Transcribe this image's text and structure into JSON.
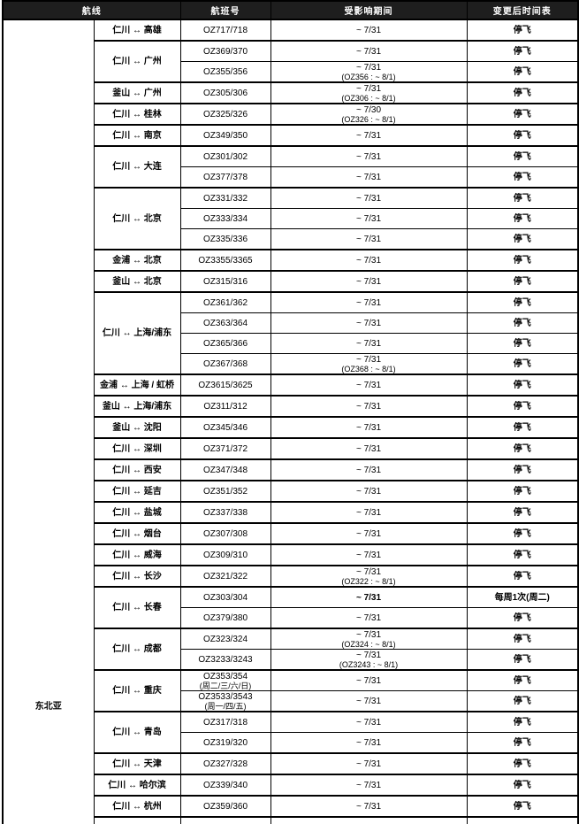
{
  "header": {
    "route": "航线",
    "flight_no": "航班号",
    "period": "受影响期间",
    "schedule": "变更后时间表"
  },
  "region": {
    "label": "东北亚"
  },
  "colors": {
    "header_bg": "#1e1e1e",
    "header_text": "#ffffff",
    "group_cell_bg": "#e9e9e9",
    "highlight_bg": "#dcdcdc",
    "highlight_text": "#2929cc",
    "border": "#000000"
  },
  "groups": [
    {
      "route": "仁川 ↔ 高雄",
      "flights": [
        {
          "no": "OZ717/718",
          "period": "~ 7/31",
          "schedule": "停飞"
        }
      ]
    },
    {
      "route": "仁川 ↔ 广州",
      "flights": [
        {
          "no": "OZ369/370",
          "period": "~ 7/31",
          "schedule": "停飞"
        },
        {
          "no": "OZ355/356",
          "period": "~ 7/31",
          "period2": "(OZ356 : ~ 8/1)",
          "schedule": "停飞"
        }
      ]
    },
    {
      "route": "釜山 ↔ 广州",
      "flights": [
        {
          "no": "OZ305/306",
          "period": "~ 7/31",
          "period2": "(OZ306 : ~ 8/1)",
          "schedule": "停飞"
        }
      ]
    },
    {
      "route": "仁川 ↔ 桂林",
      "flights": [
        {
          "no": "OZ325/326",
          "period": "~ 7/30",
          "period2": "(OZ326 : ~ 8/1)",
          "schedule": "停飞"
        }
      ]
    },
    {
      "route": "仁川 ↔ 南京",
      "flights": [
        {
          "no": "OZ349/350",
          "period": "~ 7/31",
          "schedule": "停飞"
        }
      ]
    },
    {
      "route": "仁川 ↔ 大连",
      "flights": [
        {
          "no": "OZ301/302",
          "period": "~ 7/31",
          "schedule": "停飞"
        },
        {
          "no": "OZ377/378",
          "period": "~ 7/31",
          "schedule": "停飞"
        }
      ]
    },
    {
      "route": "仁川 ↔ 北京",
      "flights": [
        {
          "no": "OZ331/332",
          "period": "~ 7/31",
          "schedule": "停飞"
        },
        {
          "no": "OZ333/334",
          "period": "~ 7/31",
          "schedule": "停飞"
        },
        {
          "no": "OZ335/336",
          "period": "~ 7/31",
          "schedule": "停飞"
        }
      ]
    },
    {
      "route": "金浦 ↔ 北京",
      "flights": [
        {
          "no": "OZ3355/3365",
          "period": "~ 7/31",
          "schedule": "停飞"
        }
      ]
    },
    {
      "route": "釜山 ↔ 北京",
      "flights": [
        {
          "no": "OZ315/316",
          "period": "~ 7/31",
          "schedule": "停飞"
        }
      ]
    },
    {
      "route": "仁川 ↔ 上海/浦东",
      "flights": [
        {
          "no": "OZ361/362",
          "period": "~ 7/31",
          "schedule": "停飞"
        },
        {
          "no": "OZ363/364",
          "period": "~ 7/31",
          "schedule": "停飞"
        },
        {
          "no": "OZ365/366",
          "period": "~ 7/31",
          "schedule": "停飞"
        },
        {
          "no": "OZ367/368",
          "period": "~ 7/31",
          "period2": "(OZ368 : ~ 8/1)",
          "schedule": "停飞"
        }
      ]
    },
    {
      "route": "金浦 ↔ 上海 / 虹桥",
      "flights": [
        {
          "no": "OZ3615/3625",
          "period": "~ 7/31",
          "schedule": "停飞"
        }
      ]
    },
    {
      "route": "釜山 ↔ 上海/浦东",
      "flights": [
        {
          "no": "OZ311/312",
          "period": "~ 7/31",
          "schedule": "停飞"
        }
      ]
    },
    {
      "route": "釜山 ↔ 沈阳",
      "flights": [
        {
          "no": "OZ345/346",
          "period": "~ 7/31",
          "schedule": "停飞"
        }
      ]
    },
    {
      "route": "仁川 ↔ 深圳",
      "flights": [
        {
          "no": "OZ371/372",
          "period": "~ 7/31",
          "schedule": "停飞"
        }
      ]
    },
    {
      "route": "仁川 ↔ 西安",
      "flights": [
        {
          "no": "OZ347/348",
          "period": "~ 7/31",
          "schedule": "停飞"
        }
      ]
    },
    {
      "route": "仁川 ↔ 延吉",
      "flights": [
        {
          "no": "OZ351/352",
          "period": "~ 7/31",
          "schedule": "停飞"
        }
      ]
    },
    {
      "route": "仁川 ↔ 盐城",
      "flights": [
        {
          "no": "OZ337/338",
          "period": "~ 7/31",
          "schedule": "停飞"
        }
      ]
    },
    {
      "route": "仁川 ↔ 烟台",
      "flights": [
        {
          "no": "OZ307/308",
          "period": "~ 7/31",
          "schedule": "停飞"
        }
      ]
    },
    {
      "route": "仁川 ↔ 威海",
      "flights": [
        {
          "no": "OZ309/310",
          "period": "~ 7/31",
          "schedule": "停飞"
        }
      ]
    },
    {
      "route": "仁川 ↔ 长沙",
      "flights": [
        {
          "no": "OZ321/322",
          "period": "~ 7/31",
          "period2": "(OZ322 : ~ 8/1)",
          "schedule": "停飞"
        }
      ]
    },
    {
      "route": "仁川 ↔ 长春",
      "flights": [
        {
          "no": "OZ303/304",
          "period": "~ 7/31",
          "schedule": "每周1次(周二)",
          "highlight": true
        },
        {
          "no": "OZ379/380",
          "period": "~ 7/31",
          "schedule": "停飞"
        }
      ]
    },
    {
      "route": "仁川 ↔ 成都",
      "flights": [
        {
          "no": "OZ323/324",
          "period": "~ 7/31",
          "period2": "(OZ324 : ~ 8/1)",
          "schedule": "停飞"
        },
        {
          "no": "OZ3233/3243",
          "period": "~ 7/31",
          "period2": "(OZ3243 : ~ 8/1)",
          "schedule": "停飞"
        }
      ]
    },
    {
      "route": "仁川 ↔ 重庆",
      "flights": [
        {
          "no": "OZ353/354",
          "no2": "(周二/三/六/日)",
          "period": "~ 7/31",
          "schedule": "停飞"
        },
        {
          "no": "OZ3533/3543",
          "no2": "(周一/四/五)",
          "period": "~ 7/31",
          "schedule": "停飞"
        }
      ]
    },
    {
      "route": "仁川 ↔ 青岛",
      "flights": [
        {
          "no": "OZ317/318",
          "period": "~ 7/31",
          "schedule": "停飞"
        },
        {
          "no": "OZ319/320",
          "period": "~ 7/31",
          "schedule": "停飞"
        }
      ]
    },
    {
      "route": "仁川 ↔ 天津",
      "flights": [
        {
          "no": "OZ327/328",
          "period": "~ 7/31",
          "schedule": "停飞"
        }
      ]
    },
    {
      "route": "仁川 ↔ 哈尔滨",
      "flights": [
        {
          "no": "OZ339/340",
          "period": "~ 7/31",
          "schedule": "停飞"
        }
      ]
    },
    {
      "route": "仁川 ↔ 杭州",
      "flights": [
        {
          "no": "OZ359/360",
          "period": "~ 7/31",
          "schedule": "停飞"
        }
      ]
    }
  ]
}
